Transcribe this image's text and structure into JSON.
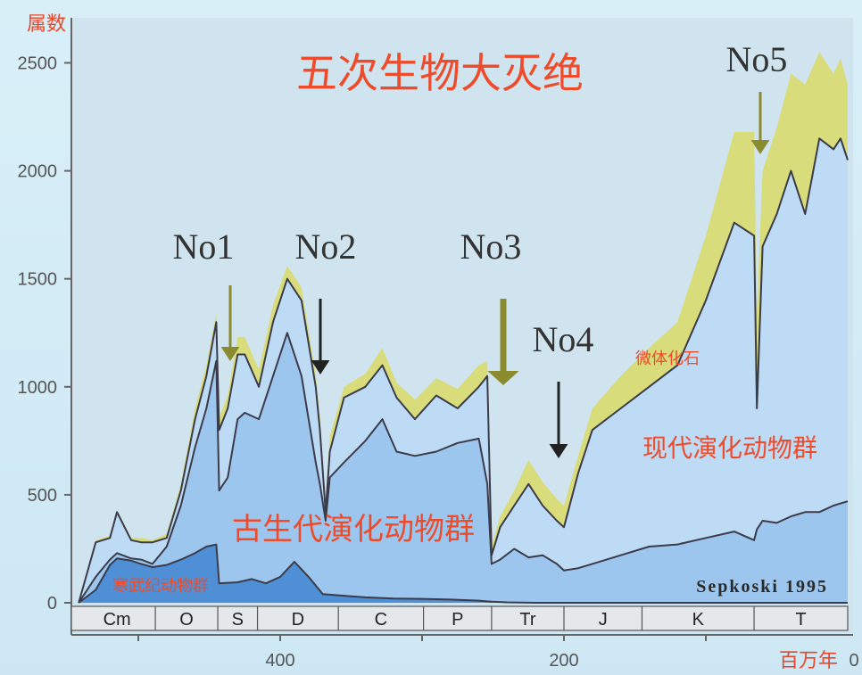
{
  "chart_data": {
    "type": "area",
    "title": "五次生物大灭绝",
    "ylabel": "属数",
    "xlabel": "百万年",
    "ylim": [
      0,
      2600
    ],
    "xlim": [
      542,
      0
    ],
    "y_ticks": [
      "0",
      "500",
      "1000",
      "1500",
      "2000",
      "2500"
    ],
    "x_ticks": [
      {
        "value": 400,
        "label": "400"
      },
      {
        "value": 200,
        "label": "200"
      },
      {
        "value": 0,
        "label": "0"
      }
    ],
    "periods": [
      {
        "label": "Cm",
        "start": 542,
        "end": 488
      },
      {
        "label": "O",
        "start": 488,
        "end": 444
      },
      {
        "label": "S",
        "start": 444,
        "end": 416
      },
      {
        "label": "D",
        "start": 416,
        "end": 359
      },
      {
        "label": "C",
        "start": 359,
        "end": 299
      },
      {
        "label": "P",
        "start": 299,
        "end": 251
      },
      {
        "label": "Tr",
        "start": 251,
        "end": 200
      },
      {
        "label": "J",
        "start": 200,
        "end": 145
      },
      {
        "label": "K",
        "start": 145,
        "end": 66
      },
      {
        "label": "T",
        "start": 66,
        "end": 0
      }
    ],
    "series": [
      {
        "name": "寒武纪动物群",
        "color": "#4f8fd6",
        "x": [
          542,
          530,
          520,
          515,
          505,
          498,
          490,
          480,
          470,
          460,
          452,
          445,
          443,
          430,
          420,
          410,
          400,
          390,
          380,
          370,
          360,
          350,
          340,
          320,
          300,
          280,
          260,
          251,
          240,
          220,
          200,
          180,
          160,
          140,
          100,
          66,
          0
        ],
        "values": [
          0,
          60,
          175,
          205,
          195,
          180,
          165,
          175,
          200,
          230,
          260,
          270,
          90,
          95,
          110,
          90,
          120,
          190,
          120,
          40,
          35,
          30,
          25,
          20,
          18,
          15,
          10,
          5,
          2,
          0,
          0,
          0,
          0,
          0,
          0,
          0,
          0
        ]
      },
      {
        "name": "古生代演化动物群",
        "color": "#9dc6ee",
        "x": [
          542,
          530,
          520,
          515,
          505,
          498,
          490,
          480,
          470,
          460,
          452,
          445,
          443,
          437,
          430,
          425,
          415,
          405,
          395,
          385,
          375,
          372,
          368,
          365,
          355,
          340,
          328,
          318,
          305,
          290,
          275,
          260,
          254,
          251,
          245,
          235,
          225,
          215,
          205,
          200,
          190,
          180,
          160,
          140,
          120,
          100,
          80,
          66,
          64,
          60,
          50,
          40,
          30,
          20,
          10,
          5,
          0
        ],
        "values": [
          0,
          120,
          200,
          230,
          205,
          200,
          180,
          260,
          450,
          720,
          900,
          1120,
          520,
          580,
          850,
          880,
          850,
          1050,
          1250,
          1050,
          650,
          550,
          380,
          580,
          650,
          750,
          850,
          700,
          680,
          700,
          740,
          760,
          550,
          180,
          200,
          250,
          210,
          220,
          180,
          150,
          160,
          180,
          220,
          260,
          270,
          300,
          330,
          290,
          340,
          380,
          370,
          400,
          420,
          420,
          450,
          460,
          470
        ]
      },
      {
        "name": "现代演化动物群",
        "color": "#bddbf4",
        "x": [
          542,
          530,
          520,
          515,
          505,
          498,
          490,
          480,
          470,
          460,
          452,
          445,
          443,
          437,
          430,
          425,
          415,
          405,
          395,
          385,
          375,
          372,
          368,
          365,
          355,
          340,
          328,
          318,
          305,
          290,
          275,
          260,
          254,
          251,
          245,
          235,
          225,
          215,
          205,
          200,
          190,
          180,
          160,
          140,
          120,
          100,
          80,
          66,
          64,
          60,
          50,
          40,
          30,
          20,
          10,
          5,
          0
        ],
        "values": [
          0,
          280,
          300,
          420,
          290,
          280,
          280,
          300,
          520,
          850,
          1050,
          1300,
          800,
          900,
          1150,
          1150,
          1000,
          1300,
          1500,
          1400,
          1000,
          800,
          420,
          700,
          950,
          1000,
          1100,
          950,
          850,
          960,
          900,
          1000,
          1050,
          220,
          350,
          450,
          550,
          450,
          380,
          350,
          600,
          800,
          900,
          1000,
          1100,
          1400,
          1760,
          1700,
          900,
          1650,
          1800,
          2000,
          1800,
          2150,
          2100,
          2150,
          2050
        ]
      },
      {
        "name": "微体化石",
        "color": "#d8dc7a",
        "x": [
          542,
          530,
          520,
          515,
          505,
          498,
          490,
          480,
          470,
          460,
          452,
          445,
          443,
          437,
          430,
          425,
          415,
          405,
          395,
          385,
          375,
          372,
          368,
          365,
          355,
          340,
          328,
          318,
          305,
          290,
          275,
          260,
          254,
          251,
          245,
          235,
          225,
          215,
          205,
          200,
          190,
          180,
          160,
          140,
          120,
          100,
          80,
          66,
          64,
          60,
          50,
          40,
          30,
          20,
          10,
          5,
          0
        ],
        "values": [
          0,
          290,
          310,
          430,
          300,
          300,
          290,
          320,
          550,
          900,
          1100,
          1340,
          860,
          960,
          1230,
          1230,
          1080,
          1380,
          1560,
          1460,
          1060,
          860,
          450,
          770,
          1000,
          1060,
          1180,
          1020,
          940,
          1040,
          990,
          1100,
          1120,
          260,
          400,
          520,
          660,
          560,
          480,
          450,
          680,
          900,
          1050,
          1180,
          1300,
          1700,
          2180,
          2180,
          1350,
          2000,
          2200,
          2450,
          2400,
          2550,
          2450,
          2520,
          2400
        ]
      }
    ],
    "annotations": [
      {
        "label": "No1",
        "x": 445
      },
      {
        "label": "No2",
        "x": 372
      },
      {
        "label": "No3",
        "x": 251
      },
      {
        "label": "No4",
        "x": 205
      },
      {
        "label": "No5",
        "x": 66
      }
    ],
    "area_labels": [
      "古生代演化动物群",
      "现代演化动物群",
      "寒武纪动物群",
      "微体化石"
    ],
    "source": "Sepkoski  1995"
  }
}
